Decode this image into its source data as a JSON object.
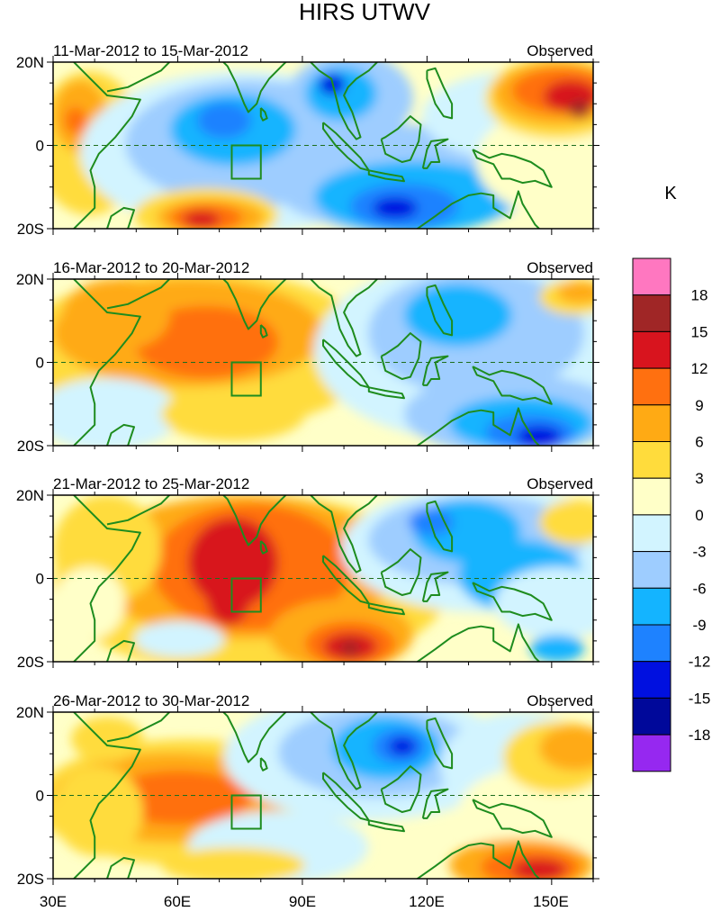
{
  "title": "HIRS UTWV",
  "unit_label": "K",
  "panels": [
    {
      "date_range": "11-Mar-2012 to 15-Mar-2012",
      "label": "Observed"
    },
    {
      "date_range": "16-Mar-2012 to 20-Mar-2012",
      "label": "Observed"
    },
    {
      "date_range": "21-Mar-2012 to 25-Mar-2012",
      "label": "Observed"
    },
    {
      "date_range": "26-Mar-2012 to 30-Mar-2012",
      "label": "Observed"
    }
  ],
  "lat_labels": [
    "20N",
    "0",
    "20S"
  ],
  "lon_labels": [
    "30E",
    "60E",
    "90E",
    "120E",
    "150E"
  ],
  "colorbar": {
    "labels": [
      "18",
      "15",
      "12",
      "9",
      "6",
      "3",
      "0",
      "-3",
      "-6",
      "-9",
      "-12",
      "-15",
      "-18"
    ],
    "colors": [
      "#ff77c0",
      "#a02626",
      "#d8141e",
      "#ff7010",
      "#ffaa14",
      "#ffdc3c",
      "#ffffc8",
      "#d2f4ff",
      "#9ecdff",
      "#14b4ff",
      "#1e82ff",
      "#0010e0",
      "#00089a",
      "#9628f0"
    ]
  },
  "regions": {
    "land": "#ffffff",
    "outline": "#1e8c1e"
  }
}
